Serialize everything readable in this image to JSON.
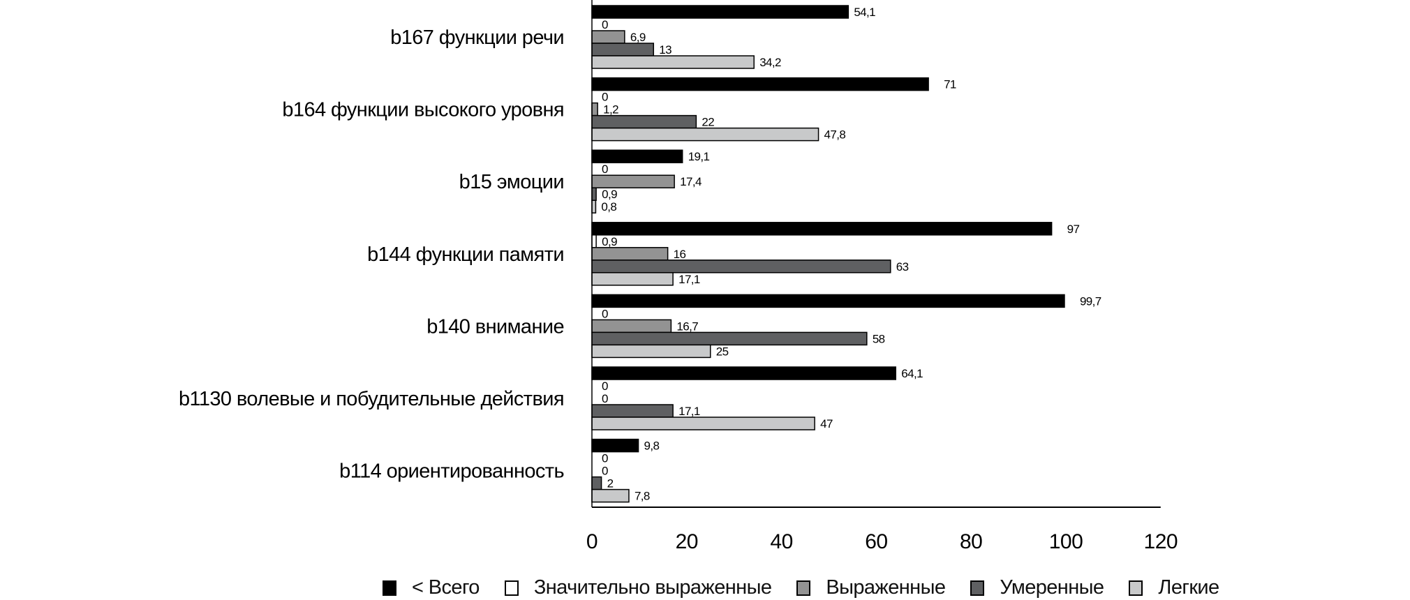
{
  "chart_data": {
    "type": "bar",
    "orientation": "horizontal",
    "categories": [
      "b167 функции речи",
      "b164 функции высокого уровня",
      "b15 эмоции",
      "b144 функции памяти",
      "b140 внимание",
      "b1130 волевые и побудительные действия",
      "b114 ориентированность"
    ],
    "series": [
      {
        "name": "< Всего",
        "color": "#000000",
        "values": [
          54.1,
          71,
          19.1,
          97,
          99.7,
          64.1,
          9.8
        ],
        "labels": [
          "54,1",
          "71",
          "19,1",
          "97",
          "99,7",
          "64,1",
          "9,8"
        ]
      },
      {
        "name": "Значительно выраженные",
        "color": "#ffffff",
        "values": [
          0,
          0,
          0,
          0.9,
          0,
          0,
          0
        ],
        "labels": [
          "0",
          "0",
          "0",
          "0,9",
          "0",
          "0",
          "0"
        ]
      },
      {
        "name": "Выраженные",
        "color": "#939393",
        "values": [
          6.9,
          1.2,
          17.4,
          16,
          16.7,
          0,
          0
        ],
        "labels": [
          "6,9",
          "1,2",
          "17,4",
          "16",
          "16,7",
          "0",
          "0"
        ]
      },
      {
        "name": "Умеренные",
        "color": "#5f6062",
        "values": [
          13,
          22,
          0.9,
          63,
          58,
          17.1,
          2
        ],
        "labels": [
          "13",
          "22",
          "0,9",
          "63",
          "58",
          "17,1",
          "2"
        ]
      },
      {
        "name": "Легкие",
        "color": "#c8c9ca",
        "values": [
          34.2,
          47.8,
          0.8,
          17.1,
          25,
          47,
          7.8
        ],
        "labels": [
          "34,2",
          "47,8",
          "0,8",
          "17,1",
          "25",
          "47",
          "7,8"
        ]
      }
    ],
    "xlim": [
      0,
      120
    ],
    "xticks": [
      "0",
      "20",
      "40",
      "60",
      "80",
      "100",
      "120"
    ],
    "grid": false,
    "legend_position": "bottom"
  }
}
